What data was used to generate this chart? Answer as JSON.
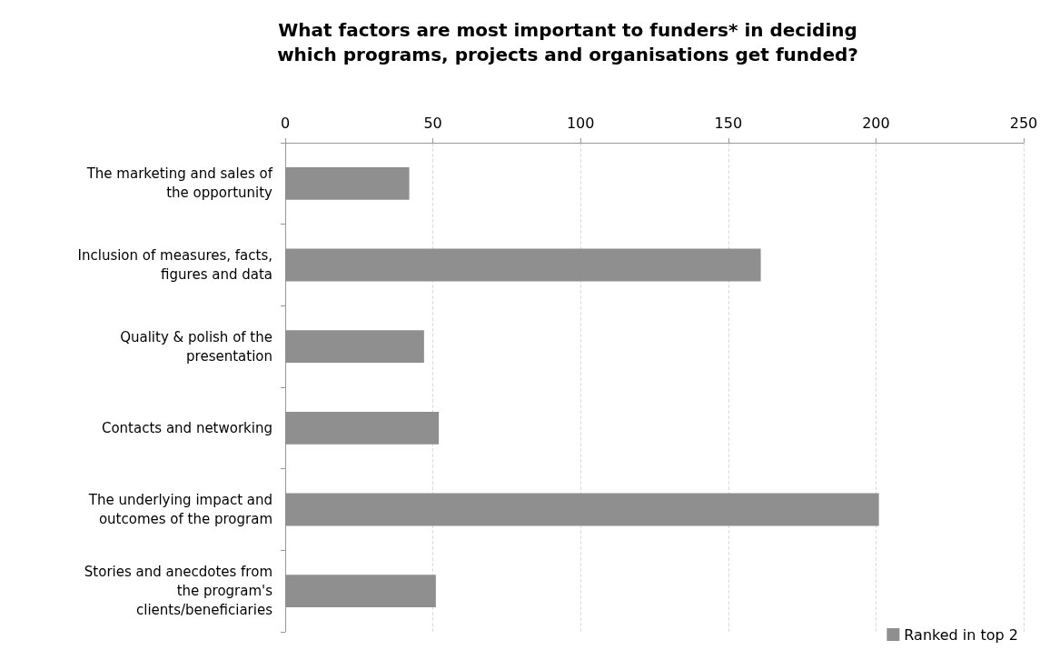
{
  "chart_data": {
    "type": "bar",
    "orientation": "horizontal",
    "title": "What factors are most important to funders* in deciding\nwhich programs, projects and organisations get funded?",
    "categories": [
      "The marketing and sales of\nthe opportunity",
      "Inclusion of measures, facts,\nfigures and data",
      "Quality & polish of the\npresentation",
      "Contacts and networking",
      "The underlying impact and\noutcomes of the program",
      "Stories and anecdotes from\nthe program's\nclients/beneficiaries"
    ],
    "series": [
      {
        "name": "Ranked in top 2",
        "color": "#8f8f8f",
        "values": [
          42,
          161,
          47,
          52,
          201,
          51
        ]
      }
    ],
    "xlim": [
      0,
      250
    ],
    "xticks": [
      0,
      50,
      100,
      150,
      200,
      250
    ],
    "grid": "x",
    "legend": "bottom right"
  }
}
